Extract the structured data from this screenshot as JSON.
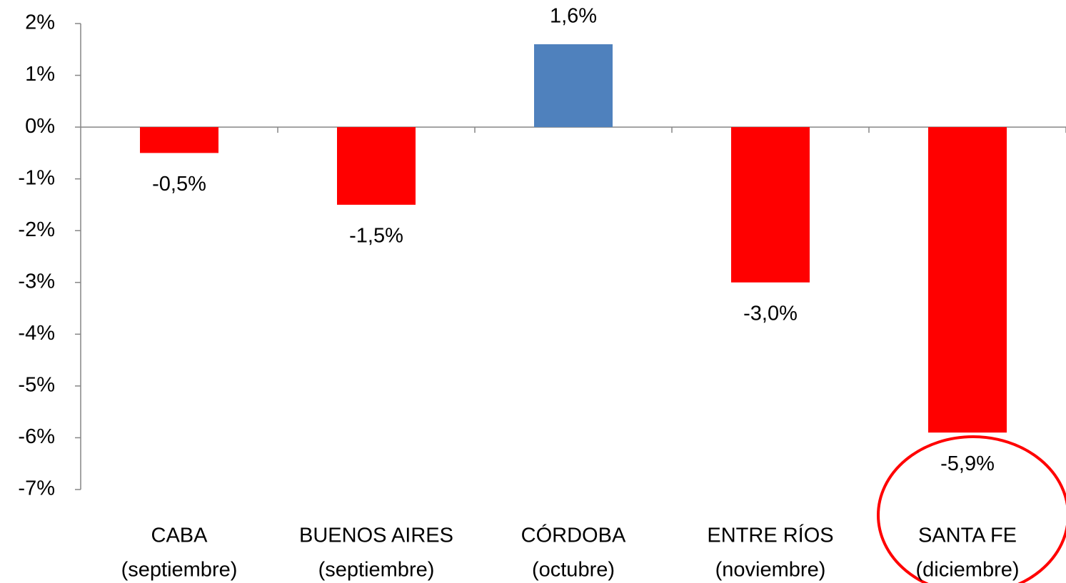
{
  "chart_data": {
    "type": "bar",
    "categories": [
      [
        "CABA",
        "(septiembre)"
      ],
      [
        "BUENOS AIRES",
        "(septiembre)"
      ],
      [
        "CÓRDOBA",
        "(octubre)"
      ],
      [
        "ENTRE RÍOS",
        "(noviembre)"
      ],
      [
        "SANTA FE",
        "(diciembre)"
      ]
    ],
    "values": [
      -0.5,
      -1.5,
      1.6,
      -3.0,
      -5.9
    ],
    "value_labels": [
      "-0,5%",
      "-1,5%",
      "1,6%",
      "-3,0%",
      "-5,9%"
    ],
    "colors": [
      "#ff0000",
      "#ff0000",
      "#4f81bd",
      "#ff0000",
      "#ff0000"
    ],
    "ylim": [
      -7,
      2
    ],
    "yticks": [
      {
        "value": 2,
        "label": "2%"
      },
      {
        "value": 1,
        "label": "1%"
      },
      {
        "value": 0,
        "label": "0%"
      },
      {
        "value": -1,
        "label": "-1%"
      },
      {
        "value": -2,
        "label": "-2%"
      },
      {
        "value": -3,
        "label": "-3%"
      },
      {
        "value": -4,
        "label": "-4%"
      },
      {
        "value": -5,
        "label": "-5%"
      },
      {
        "value": -6,
        "label": "-6%"
      },
      {
        "value": -7,
        "label": "-7%"
      }
    ],
    "grid": false
  }
}
